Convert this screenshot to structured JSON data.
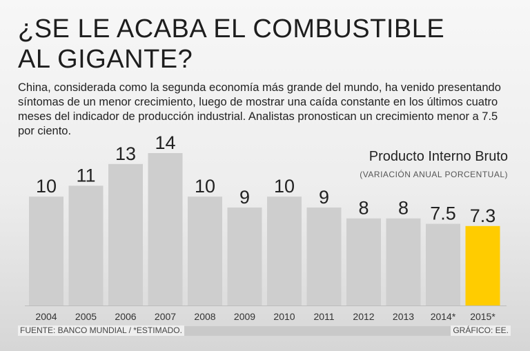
{
  "header": {
    "title_line1": "¿SE LE ACABA EL COMBUSTIBLE",
    "title_line2": "AL GIGANTE?",
    "intro": "China, considerada como la segunda economía más grande del mundo, ha venido presentando síntomas de un menor crecimiento, luego de mostrar una caída constante en los últimos cuatro meses del indicador de producción industrial. Analistas pronostican un crecimiento menor a 7.5 por ciento."
  },
  "footer": {
    "source": "FUENTE: BANCO MUNDIAL / *ESTIMADO.",
    "credit": "GRÁFICO: EE."
  },
  "colors": {
    "bar": "#cecece",
    "highlight": "#ffcc00",
    "text": "#222222"
  },
  "chart_data": {
    "type": "bar",
    "title": "Producto Interno Bruto",
    "subtitle": "(VARIACIÓN ANUAL PORCENTUAL)",
    "categories": [
      "2004",
      "2005",
      "2006",
      "2007",
      "2008",
      "2009",
      "2010",
      "2011",
      "2012",
      "2013",
      "2014*",
      "2015*"
    ],
    "values": [
      10,
      11,
      13,
      14,
      10,
      9,
      10,
      9,
      8,
      8,
      7.5,
      7.3
    ],
    "value_labels": [
      "10",
      "11",
      "13",
      "14",
      "10",
      "9",
      "10",
      "9",
      "8",
      "8",
      "7.5",
      "7.3"
    ],
    "highlight_index": 11,
    "xlabel": "",
    "ylabel": "",
    "ylim": [
      0,
      14
    ]
  }
}
